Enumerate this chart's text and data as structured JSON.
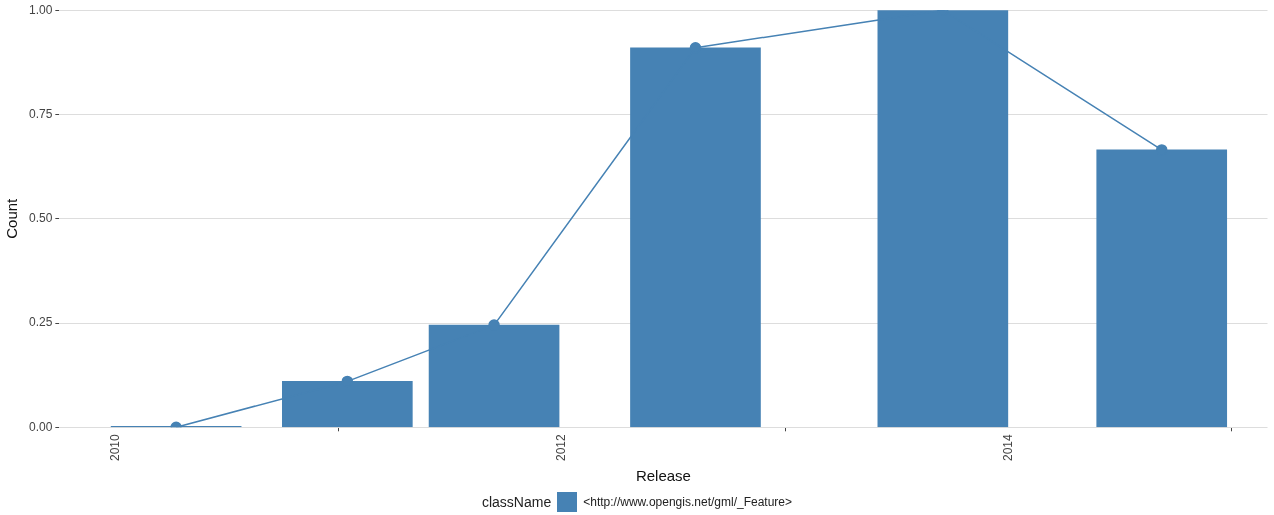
{
  "chart_data": {
    "type": "bar",
    "x": [
      "2010-04-10",
      "2011-01-15",
      "2011-09-12",
      "2012-08-07",
      "2013-09-16",
      "2014-09-09"
    ],
    "series": [
      {
        "name": "<http://www.opengis.net/gml/_Feature>",
        "color": "#4682b4",
        "values": [
          0,
          0.11,
          0.245,
          0.91,
          1.0,
          0.665
        ]
      },
      {
        "type": "line",
        "color": "#4682b4",
        "values": [
          0,
          0.11,
          0.245,
          0.91,
          1.0,
          0.665
        ]
      }
    ],
    "xlabel": "Release",
    "ylabel": "Count",
    "legend_title": "className",
    "xlim": [
      "2009-10-01",
      "2015-03-01"
    ],
    "xticks": [
      "2010",
      "2012",
      "2014"
    ],
    "ylim": [
      0,
      1.0
    ],
    "yticks": [
      {
        "value": 0,
        "label": "0.00"
      },
      {
        "value": 0.25,
        "label": "0.25"
      },
      {
        "value": 0.5,
        "label": "0.50"
      },
      {
        "value": 0.75,
        "label": "0.75"
      },
      {
        "value": 1.0,
        "label": "1.00"
      }
    ],
    "grid": "y",
    "legend": "bottom",
    "marker": "circle"
  }
}
